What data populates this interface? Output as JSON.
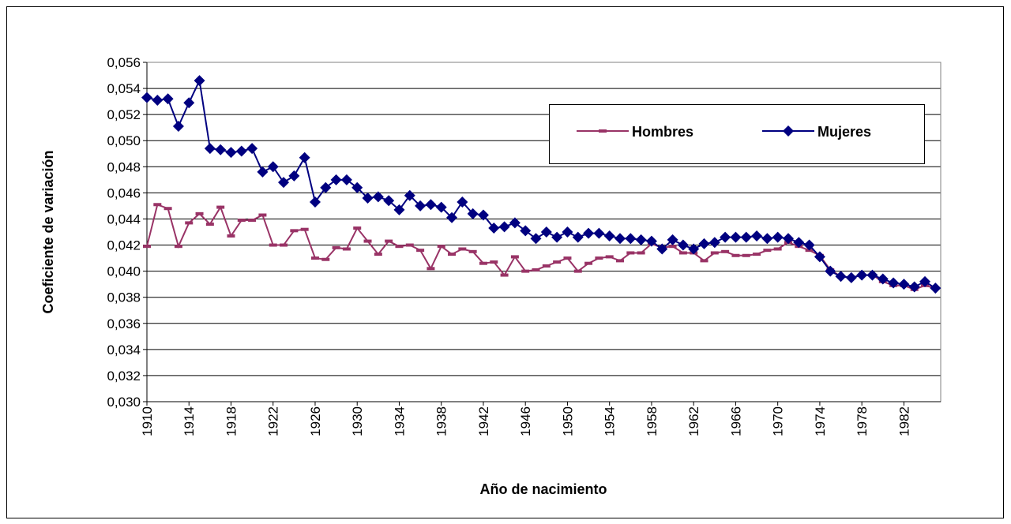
{
  "chart_data": {
    "type": "line",
    "x_label": "Año de nacimiento",
    "y_label": "Coeficiente de variación",
    "x": [
      1910,
      1911,
      1912,
      1913,
      1914,
      1915,
      1916,
      1917,
      1918,
      1919,
      1920,
      1921,
      1922,
      1923,
      1924,
      1925,
      1926,
      1927,
      1928,
      1929,
      1930,
      1931,
      1932,
      1933,
      1934,
      1935,
      1936,
      1937,
      1938,
      1939,
      1940,
      1941,
      1942,
      1943,
      1944,
      1945,
      1946,
      1947,
      1948,
      1949,
      1950,
      1951,
      1952,
      1953,
      1954,
      1955,
      1956,
      1957,
      1958,
      1959,
      1960,
      1961,
      1962,
      1963,
      1964,
      1965,
      1966,
      1967,
      1968,
      1969,
      1970,
      1971,
      1972,
      1973,
      1974,
      1975,
      1976,
      1977,
      1978,
      1979,
      1980,
      1981,
      1982,
      1983,
      1984,
      1985
    ],
    "series": [
      {
        "name": "Hombres",
        "color": "#993366",
        "marker": "dash",
        "values": [
          0.0419,
          0.0451,
          0.0448,
          0.0419,
          0.0437,
          0.0444,
          0.0436,
          0.0449,
          0.0427,
          0.0439,
          0.0439,
          0.0443,
          0.042,
          0.042,
          0.0431,
          0.0432,
          0.041,
          0.0409,
          0.0418,
          0.0417,
          0.0433,
          0.0423,
          0.0413,
          0.0423,
          0.0419,
          0.042,
          0.0416,
          0.0402,
          0.0419,
          0.0413,
          0.0417,
          0.0415,
          0.0406,
          0.0407,
          0.0397,
          0.0411,
          0.04,
          0.0401,
          0.0404,
          0.0407,
          0.041,
          0.04,
          0.0406,
          0.041,
          0.0411,
          0.0408,
          0.0414,
          0.0414,
          0.0421,
          0.0418,
          0.0419,
          0.0414,
          0.0414,
          0.0408,
          0.0414,
          0.0415,
          0.0412,
          0.0412,
          0.0413,
          0.0416,
          0.0417,
          0.0422,
          0.0419,
          0.0416,
          0.0412,
          0.0401,
          0.0396,
          0.0395,
          0.0397,
          0.0397,
          0.0392,
          0.0389,
          0.0389,
          0.0386,
          0.0389,
          0.0387
        ]
      },
      {
        "name": "Mujeres",
        "color": "#000080",
        "marker": "diamond",
        "values": [
          0.0533,
          0.0531,
          0.0532,
          0.0511,
          0.0529,
          0.0546,
          0.0494,
          0.0493,
          0.0491,
          0.0492,
          0.0494,
          0.0476,
          0.048,
          0.0468,
          0.0473,
          0.0487,
          0.0453,
          0.0464,
          0.047,
          0.047,
          0.0464,
          0.0456,
          0.0457,
          0.0454,
          0.0447,
          0.0458,
          0.045,
          0.0451,
          0.0449,
          0.0441,
          0.0453,
          0.0444,
          0.0443,
          0.0433,
          0.0434,
          0.0437,
          0.0431,
          0.0425,
          0.043,
          0.0426,
          0.043,
          0.0426,
          0.0429,
          0.0429,
          0.0427,
          0.0425,
          0.0425,
          0.0424,
          0.0423,
          0.0417,
          0.0424,
          0.042,
          0.0417,
          0.0421,
          0.0422,
          0.0426,
          0.0426,
          0.0426,
          0.0427,
          0.0425,
          0.0426,
          0.0425,
          0.0422,
          0.042,
          0.0411,
          0.04,
          0.0396,
          0.0395,
          0.0397,
          0.0397,
          0.0394,
          0.0391,
          0.039,
          0.0388,
          0.0392,
          0.0387
        ]
      }
    ],
    "xlim": [
      1910,
      1985.5
    ],
    "xticks": [
      1910,
      1914,
      1918,
      1922,
      1926,
      1930,
      1934,
      1938,
      1942,
      1946,
      1950,
      1954,
      1958,
      1962,
      1966,
      1970,
      1974,
      1978,
      1982
    ],
    "ylim": [
      0.03,
      0.056
    ],
    "yticks": [
      {
        "value": 0.03,
        "label": "0,030"
      },
      {
        "value": 0.032,
        "label": "0,032"
      },
      {
        "value": 0.034,
        "label": "0,034"
      },
      {
        "value": 0.036,
        "label": "0,036"
      },
      {
        "value": 0.038,
        "label": "0,038"
      },
      {
        "value": 0.04,
        "label": "0,040"
      },
      {
        "value": 0.042,
        "label": "0,042"
      },
      {
        "value": 0.044,
        "label": "0,044"
      },
      {
        "value": 0.046,
        "label": "0,046"
      },
      {
        "value": 0.048,
        "label": "0,048"
      },
      {
        "value": 0.05,
        "label": "0,050"
      },
      {
        "value": 0.052,
        "label": "0,052"
      },
      {
        "value": 0.054,
        "label": "0,054"
      },
      {
        "value": 0.056,
        "label": "0,056"
      }
    ],
    "grid": true,
    "legend_position": "upper right"
  }
}
